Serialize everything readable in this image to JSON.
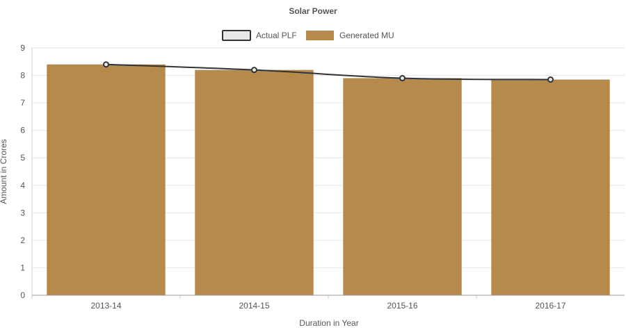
{
  "chart_data": {
    "type": "bar",
    "title": "Solar Power",
    "xlabel": "Duration in Year",
    "ylabel": "Amount in Crores",
    "categories": [
      "2013-14",
      "2014-15",
      "2015-16",
      "2016-17"
    ],
    "ylim": [
      0,
      9
    ],
    "yticks": [
      0,
      1,
      2,
      3,
      4,
      5,
      6,
      7,
      8,
      9
    ],
    "grid": true,
    "legend_position": "top-center",
    "series": [
      {
        "name": "Actual PLF",
        "type": "line",
        "values": [
          8.4,
          8.2,
          7.9,
          7.85
        ],
        "color": "#333333",
        "fill": "#e8e8e8"
      },
      {
        "name": "Generated MU",
        "type": "bar",
        "values": [
          8.4,
          8.2,
          7.9,
          7.85
        ],
        "color": "#b58a4a"
      }
    ]
  }
}
